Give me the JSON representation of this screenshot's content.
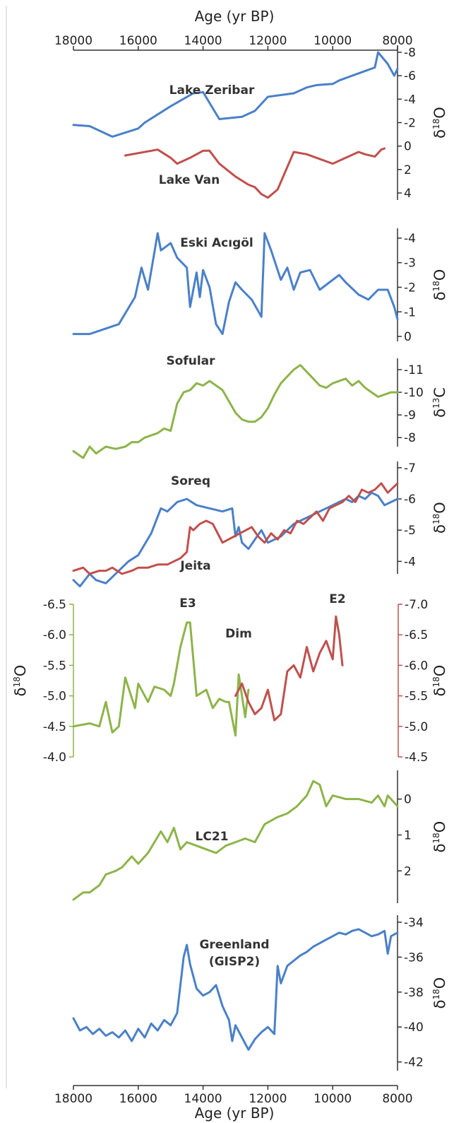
{
  "chart_data": [
    {
      "type": "line",
      "xlabel": "Age (yr BP)",
      "xlim": [
        18000,
        8000
      ],
      "x_ticks": [
        "18000",
        "16000",
        "14000",
        "12000",
        "10000",
        "8000"
      ],
      "ylabel": "δ18O",
      "ylim": [
        4.6,
        -8.6
      ],
      "y_ticks": [
        "-8",
        "-6",
        "-4",
        "-2",
        "0",
        "2",
        "4"
      ],
      "series": [
        {
          "name": "Lake Zeribar",
          "color": "#4a80c8",
          "x": [
            18000,
            17500,
            16800,
            16000,
            15800,
            15000,
            14300,
            14000,
            13500,
            12800,
            12400,
            12000,
            11200,
            10800,
            10500,
            10000,
            9800,
            9400,
            8700,
            8600,
            8300,
            8100,
            8000
          ],
          "y": [
            -1.8,
            -1.7,
            -0.8,
            -1.5,
            -2.0,
            -3.4,
            -4.5,
            -4.6,
            -2.3,
            -2.5,
            -3.0,
            -4.2,
            -4.5,
            -5.0,
            -5.2,
            -5.3,
            -5.6,
            -6.0,
            -6.7,
            -8.0,
            -7.0,
            -6.0,
            -6.6
          ]
        },
        {
          "name": "Lake Van",
          "color": "#c0504d",
          "x": [
            16400,
            15400,
            15000,
            14800,
            14400,
            14000,
            13800,
            13500,
            13000,
            12600,
            12400,
            12200,
            12000,
            11700,
            11200,
            10800,
            10500,
            10000,
            9600,
            9200,
            9000,
            8700,
            8500,
            8400
          ],
          "y": [
            0.8,
            0.3,
            1.0,
            1.5,
            1.0,
            0.4,
            0.4,
            1.5,
            2.6,
            3.3,
            3.5,
            4.1,
            4.4,
            3.7,
            0.5,
            0.7,
            1.0,
            1.5,
            1.0,
            0.5,
            0.7,
            0.9,
            0.3,
            0.2
          ]
        }
      ]
    },
    {
      "type": "line",
      "ylabel": "δ18O",
      "ylim": [
        0.2,
        -4.4
      ],
      "y_ticks": [
        "-4",
        "-3",
        "-2",
        "-1",
        "0"
      ],
      "series": [
        {
          "name": "Eski Acıgöl",
          "color": "#4a80c8",
          "x": [
            18000,
            17500,
            16600,
            16100,
            15900,
            15700,
            15400,
            15300,
            15000,
            14800,
            14500,
            14400,
            14200,
            14100,
            14000,
            13800,
            13600,
            13400,
            13200,
            13000,
            12800,
            12500,
            12200,
            12100,
            11900,
            11800,
            11600,
            11400,
            11200,
            11000,
            10700,
            10400,
            10000,
            9800,
            9600,
            9200,
            8900,
            8600,
            8300,
            8100,
            8000
          ],
          "y": [
            -0.1,
            -0.1,
            -0.5,
            -1.6,
            -2.8,
            -1.9,
            -4.2,
            -3.5,
            -3.8,
            -3.2,
            -2.8,
            -1.2,
            -2.6,
            -1.6,
            -2.7,
            -2.0,
            -0.5,
            -0.1,
            -1.4,
            -2.2,
            -1.9,
            -1.5,
            -0.8,
            -4.2,
            -3.5,
            -3.1,
            -2.3,
            -2.8,
            -1.9,
            -2.6,
            -2.7,
            -1.9,
            -2.3,
            -2.5,
            -2.2,
            -1.7,
            -1.5,
            -1.9,
            -1.9,
            -1.2,
            -0.7
          ]
        }
      ]
    },
    {
      "type": "line",
      "ylabel": "δ13C",
      "ylim": [
        -7.6,
        -11.5
      ],
      "y_ticks": [
        "-11",
        "-10",
        "-9",
        "-8"
      ],
      "series": [
        {
          "name": "Sofular",
          "color": "#8db44a",
          "x": [
            18000,
            17700,
            17500,
            17300,
            17000,
            16700,
            16400,
            16200,
            16000,
            15800,
            15600,
            15400,
            15200,
            15000,
            14800,
            14600,
            14400,
            14200,
            14000,
            13800,
            13600,
            13400,
            13200,
            13000,
            12800,
            12600,
            12400,
            12200,
            12000,
            11800,
            11600,
            11400,
            11200,
            11000,
            10800,
            10600,
            10400,
            10200,
            10000,
            9800,
            9600,
            9400,
            9200,
            9000,
            8800,
            8600,
            8400,
            8200,
            8000
          ],
          "y": [
            -7.4,
            -7.1,
            -7.6,
            -7.3,
            -7.6,
            -7.5,
            -7.6,
            -7.8,
            -7.8,
            -8.0,
            -8.1,
            -8.2,
            -8.4,
            -8.3,
            -9.5,
            -10.0,
            -10.1,
            -10.4,
            -10.3,
            -10.5,
            -10.3,
            -10.1,
            -9.6,
            -9.1,
            -8.8,
            -8.7,
            -8.7,
            -8.9,
            -9.3,
            -9.9,
            -10.4,
            -10.7,
            -11.0,
            -11.2,
            -10.9,
            -10.6,
            -10.3,
            -10.2,
            -10.4,
            -10.5,
            -10.6,
            -10.3,
            -10.5,
            -10.2,
            -10.0,
            -9.8,
            -9.9,
            -10.0,
            -10.0
          ]
        }
      ]
    },
    {
      "type": "line",
      "ylabel": "δ18O",
      "ylim": [
        -3.6,
        -7.2
      ],
      "y_ticks": [
        "-7",
        "-6",
        "-5",
        "-4"
      ],
      "series": [
        {
          "name": "Soreq",
          "color": "#4a80c8",
          "x": [
            18000,
            17800,
            17500,
            17300,
            17000,
            16800,
            16500,
            16300,
            16000,
            15600,
            15300,
            15100,
            14800,
            14500,
            14200,
            13800,
            13400,
            13100,
            13000,
            12900,
            12800,
            12600,
            12400,
            12200,
            12000,
            11800,
            11600,
            11400,
            11200,
            11000,
            10800,
            10600,
            10400,
            10200,
            10000,
            9800,
            9600,
            9400,
            9200,
            9000,
            8800,
            8600,
            8400,
            8200,
            8000
          ],
          "y": [
            -3.4,
            -3.2,
            -3.6,
            -3.4,
            -3.3,
            -3.5,
            -3.8,
            -4.0,
            -4.2,
            -4.9,
            -5.7,
            -5.6,
            -5.9,
            -6.0,
            -5.8,
            -5.7,
            -5.6,
            -5.7,
            -4.8,
            -5.1,
            -4.6,
            -4.4,
            -4.7,
            -5.0,
            -4.6,
            -4.7,
            -4.8,
            -5.0,
            -5.2,
            -5.3,
            -5.4,
            -5.5,
            -5.6,
            -5.7,
            -5.8,
            -5.9,
            -6.0,
            -5.9,
            -6.1,
            -6.0,
            -6.2,
            -6.1,
            -5.8,
            -5.9,
            -6.0
          ]
        },
        {
          "name": "Jeita",
          "color": "#c0504d",
          "x": [
            18000,
            17700,
            17500,
            17200,
            17000,
            16800,
            16500,
            16200,
            16000,
            15700,
            15400,
            15100,
            14900,
            14700,
            14500,
            14400,
            14300,
            14100,
            13900,
            13700,
            13500,
            13400,
            12500,
            12300,
            12100,
            11900,
            11700,
            11500,
            11300,
            11100,
            10900,
            10700,
            10500,
            10300,
            10100,
            9900,
            9700,
            9500,
            9300,
            9100,
            8900,
            8700,
            8500,
            8300,
            8100,
            8000
          ],
          "y": [
            -3.7,
            -3.8,
            -3.6,
            -3.7,
            -3.7,
            -3.8,
            -3.6,
            -3.7,
            -3.8,
            -3.8,
            -3.9,
            -3.9,
            -4.0,
            -4.1,
            -4.3,
            -5.1,
            -5.0,
            -5.2,
            -5.3,
            -5.2,
            -4.8,
            -4.6,
            -5.1,
            -4.8,
            -4.6,
            -4.9,
            -4.7,
            -5.0,
            -4.9,
            -5.3,
            -5.2,
            -5.4,
            -5.6,
            -5.3,
            -5.7,
            -5.8,
            -5.9,
            -6.1,
            -5.9,
            -6.3,
            -6.2,
            -6.3,
            -6.5,
            -6.2,
            -6.4,
            -6.5
          ]
        }
      ]
    },
    {
      "type": "line",
      "ylabel": "δ18O",
      "ylim_left": [
        -4.0,
        -6.5
      ],
      "ylim_right": [
        -4.5,
        -7.0
      ],
      "y_ticks_left": [
        "-6.5",
        "-6.0",
        "-5.5",
        "-5.0",
        "-4.5",
        "-4.0"
      ],
      "y_ticks_right": [
        "-7.0",
        "-6.5",
        "-6.0",
        "-5.5",
        "-5.0",
        "-4.5"
      ],
      "title": "Dim",
      "annotations": [
        "E3",
        "E2"
      ],
      "series": [
        {
          "name": "Dim (left axis)",
          "color": "#8db44a",
          "axis": "left",
          "x": [
            18000,
            17500,
            17200,
            17000,
            16800,
            16600,
            16400,
            16100,
            16000,
            15700,
            15500,
            15200,
            15000,
            14900,
            14700,
            14500,
            14400,
            14200,
            13900,
            13700,
            13500,
            13300,
            13200,
            13000,
            12900,
            12700,
            12600
          ],
          "y": [
            -4.5,
            -4.55,
            -4.5,
            -4.9,
            -4.4,
            -4.5,
            -5.3,
            -4.8,
            -5.2,
            -4.9,
            -5.15,
            -5.1,
            -5.0,
            -5.2,
            -5.8,
            -6.2,
            -6.2,
            -5.0,
            -5.1,
            -4.8,
            -4.95,
            -4.9,
            -4.9,
            -4.35,
            -5.35,
            -4.65,
            -5.1
          ]
        },
        {
          "name": "Dim (right axis)",
          "color": "#c0504d",
          "axis": "right",
          "x": [
            13000,
            12800,
            12600,
            12400,
            12200,
            12000,
            11800,
            11600,
            11400,
            11200,
            11000,
            10800,
            10600,
            10400,
            10200,
            10000,
            9900,
            9800,
            9700
          ],
          "y": [
            -5.5,
            -5.7,
            -5.4,
            -5.2,
            -5.3,
            -5.6,
            -5.1,
            -5.2,
            -5.9,
            -6.0,
            -5.8,
            -6.3,
            -5.9,
            -6.2,
            -6.4,
            -6.1,
            -6.8,
            -6.5,
            -6.0
          ]
        }
      ]
    },
    {
      "type": "line",
      "ylabel": "δ18O",
      "ylim": [
        2.9,
        -0.8
      ],
      "y_ticks": [
        "0",
        "1",
        "2"
      ],
      "series": [
        {
          "name": "LC21",
          "color": "#8db44a",
          "x": [
            18000,
            17700,
            17500,
            17200,
            17000,
            16700,
            16500,
            16200,
            16000,
            15700,
            15500,
            15300,
            15100,
            14900,
            14700,
            14500,
            14200,
            13900,
            13600,
            13300,
            13000,
            12700,
            12400,
            12100,
            11700,
            11400,
            11100,
            10800,
            10600,
            10400,
            10200,
            10000,
            9600,
            9200,
            8800,
            8600,
            8400,
            8300,
            8100,
            8000
          ],
          "y": [
            2.8,
            2.6,
            2.6,
            2.4,
            2.1,
            2.0,
            1.9,
            1.6,
            1.8,
            1.5,
            1.2,
            0.9,
            1.2,
            0.8,
            1.4,
            1.2,
            1.3,
            1.4,
            1.5,
            1.3,
            1.2,
            1.1,
            1.2,
            0.7,
            0.5,
            0.4,
            0.2,
            -0.1,
            -0.5,
            -0.4,
            0.2,
            -0.1,
            0.0,
            0.0,
            0.1,
            -0.1,
            0.2,
            -0.1,
            0.1,
            0.2
          ]
        }
      ]
    },
    {
      "type": "line",
      "xlabel": "Age (yr BP)",
      "xlim": [
        18000,
        8000
      ],
      "x_ticks": [
        "18000",
        "16000",
        "14000",
        "12000",
        "10000",
        "8000"
      ],
      "ylabel": "δ18O",
      "ylim": [
        -42.5,
        -33.6
      ],
      "y_ticks": [
        "-34",
        "-36",
        "-38",
        "-40",
        "-42"
      ],
      "series": [
        {
          "name": "Greenland (GISP2)",
          "color": "#4a80c8",
          "x": [
            18000,
            17800,
            17600,
            17400,
            17200,
            17000,
            16800,
            16600,
            16400,
            16200,
            16000,
            15800,
            15600,
            15400,
            15200,
            15000,
            14800,
            14600,
            14500,
            14400,
            14200,
            14000,
            13800,
            13600,
            13400,
            13200,
            13100,
            13000,
            12800,
            12600,
            12400,
            12200,
            12000,
            11800,
            11700,
            11600,
            11400,
            11200,
            11000,
            10800,
            10600,
            10400,
            10200,
            10000,
            9800,
            9600,
            9400,
            9200,
            9000,
            8800,
            8600,
            8400,
            8300,
            8200,
            8000
          ],
          "y": [
            -39.5,
            -40.2,
            -40.0,
            -40.4,
            -40.1,
            -40.5,
            -40.3,
            -40.6,
            -40.2,
            -40.8,
            -40.1,
            -40.6,
            -39.8,
            -40.2,
            -39.6,
            -39.9,
            -39.2,
            -36.0,
            -35.3,
            -36.4,
            -37.8,
            -38.2,
            -38.0,
            -37.6,
            -38.8,
            -39.6,
            -40.8,
            -39.9,
            -40.6,
            -41.3,
            -40.7,
            -40.3,
            -40.0,
            -40.4,
            -36.5,
            -37.5,
            -36.5,
            -36.2,
            -35.9,
            -35.7,
            -35.4,
            -35.2,
            -35.0,
            -34.8,
            -34.6,
            -34.7,
            -34.5,
            -34.4,
            -34.6,
            -34.8,
            -34.7,
            -34.5,
            -35.8,
            -34.8,
            -34.6
          ]
        }
      ]
    }
  ],
  "labels": {
    "age_axis": "Age (yr BP)",
    "delta": "δ",
    "o": "O",
    "c": "C",
    "sup18": "18",
    "sup13": "13",
    "lake_zeribar": "Lake Zeribar",
    "lake_van": "Lake Van",
    "eski_acigol": "Eski Acıgöl",
    "sofular": "Sofular",
    "soreq": "Soreq",
    "jeita": "Jeita",
    "dim": "Dim",
    "e3": "E3",
    "e2": "E2",
    "lc21": "LC21",
    "greenland_1": "Greenland",
    "greenland_2": "(GISP2)"
  }
}
